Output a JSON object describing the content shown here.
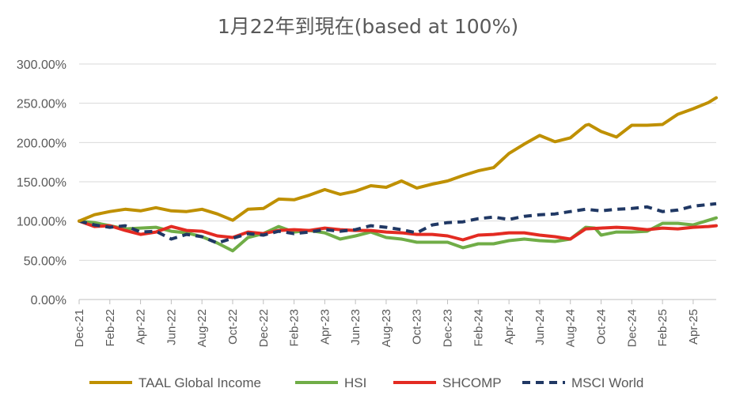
{
  "chart_data": {
    "type": "line",
    "title": "1月22年到現在(based at 100%)",
    "xlabel": "",
    "ylabel": "",
    "ylim": [
      0,
      300
    ],
    "y_ticks": [
      "0.00%",
      "50.00%",
      "100.00%",
      "150.00%",
      "200.00%",
      "250.00%",
      "300.00%"
    ],
    "x_tick_labels": [
      "Dec-21",
      "Feb-22",
      "Apr-22",
      "Jun-22",
      "Aug-22",
      "Oct-22",
      "Dec-22",
      "Feb-23",
      "Apr-23",
      "Jun-23",
      "Aug-23",
      "Oct-23",
      "Dec-23",
      "Feb-24",
      "Apr-24",
      "Jun-24",
      "Aug-24",
      "Oct-24",
      "Dec-24",
      "Feb-25",
      "Apr-25"
    ],
    "x_range": [
      0,
      41.5
    ],
    "grid": "horizontal",
    "legend_position": "bottom",
    "series": [
      {
        "name": "TAAL Global Income",
        "color": "#BF9000",
        "style": "solid",
        "x": [
          0,
          1,
          2,
          3,
          4,
          5,
          6,
          7,
          8,
          9,
          10,
          11,
          12,
          13,
          14,
          15,
          16,
          17,
          18,
          19,
          20,
          21,
          22,
          23,
          24,
          25,
          26,
          27,
          28,
          29,
          30,
          31,
          32,
          33,
          33.2,
          34,
          35,
          36,
          36.1,
          37,
          38,
          39,
          40,
          41,
          41.5
        ],
        "y": [
          100,
          108,
          112,
          115,
          113,
          117,
          113,
          112,
          115,
          109,
          101,
          115,
          116,
          128,
          127,
          133,
          140,
          134,
          138,
          145,
          143,
          151,
          142,
          147,
          151,
          158,
          164,
          168,
          186,
          198,
          209,
          201,
          206,
          222,
          223,
          214,
          207,
          222,
          222,
          222,
          223,
          236,
          243,
          251,
          257
        ]
      },
      {
        "name": "HSI",
        "color": "#70AD47",
        "style": "solid",
        "x": [
          0,
          1,
          2,
          3,
          4,
          5,
          6,
          7,
          8,
          9,
          10,
          11,
          12,
          13,
          14,
          15,
          16,
          17,
          18,
          19,
          20,
          21,
          22,
          23,
          24,
          25,
          26,
          27,
          28,
          29,
          30,
          31,
          32,
          33,
          33.6,
          34,
          35,
          36,
          37,
          38,
          39,
          40,
          41,
          41.5
        ],
        "y": [
          100,
          98,
          94,
          90,
          91,
          92,
          87,
          85,
          80,
          72,
          62,
          79,
          84,
          93,
          86,
          88,
          85,
          77,
          81,
          86,
          79,
          77,
          73,
          73,
          73,
          66,
          71,
          71,
          75,
          77,
          75,
          74,
          77,
          92,
          91,
          82,
          86,
          86,
          87,
          97,
          97,
          95,
          101,
          104
        ]
      },
      {
        "name": "SHCOMP",
        "color": "#E32B22",
        "style": "solid",
        "x": [
          0,
          1,
          2,
          3,
          4,
          5,
          6,
          7,
          8,
          9,
          10,
          11,
          12,
          13,
          14,
          15,
          16,
          17,
          18,
          19,
          20,
          21,
          22,
          23,
          24,
          25,
          26,
          27,
          28,
          29,
          30,
          31,
          32,
          33,
          34,
          35,
          36,
          37,
          38,
          39,
          40,
          41,
          41.5
        ],
        "y": [
          100,
          93,
          94,
          88,
          83,
          86,
          93,
          88,
          87,
          81,
          79,
          86,
          84,
          88,
          89,
          88,
          91,
          89,
          88,
          88,
          86,
          85,
          83,
          83,
          81,
          76,
          82,
          83,
          85,
          85,
          82,
          80,
          77,
          90,
          91,
          92,
          91,
          89,
          91,
          90,
          92,
          93,
          94
        ]
      },
      {
        "name": "MSCI World",
        "color": "#203864",
        "style": "dashed",
        "x": [
          0,
          1,
          2,
          3,
          4,
          5,
          6,
          7,
          8,
          9,
          10,
          11,
          12,
          13,
          14,
          15,
          16,
          17,
          18,
          19,
          20,
          21,
          22,
          23,
          24,
          25,
          26,
          27,
          28,
          29,
          30,
          31,
          32,
          33,
          34,
          35,
          36,
          37,
          38,
          39,
          40,
          41,
          41.5
        ],
        "y": [
          100,
          95,
          92,
          94,
          86,
          87,
          77,
          83,
          80,
          72,
          78,
          84,
          82,
          87,
          84,
          86,
          89,
          87,
          89,
          94,
          92,
          89,
          85,
          95,
          98,
          99,
          103,
          105,
          102,
          106,
          108,
          109,
          112,
          115,
          113,
          115,
          116,
          118,
          112,
          114,
          119,
          121,
          122
        ]
      }
    ]
  }
}
